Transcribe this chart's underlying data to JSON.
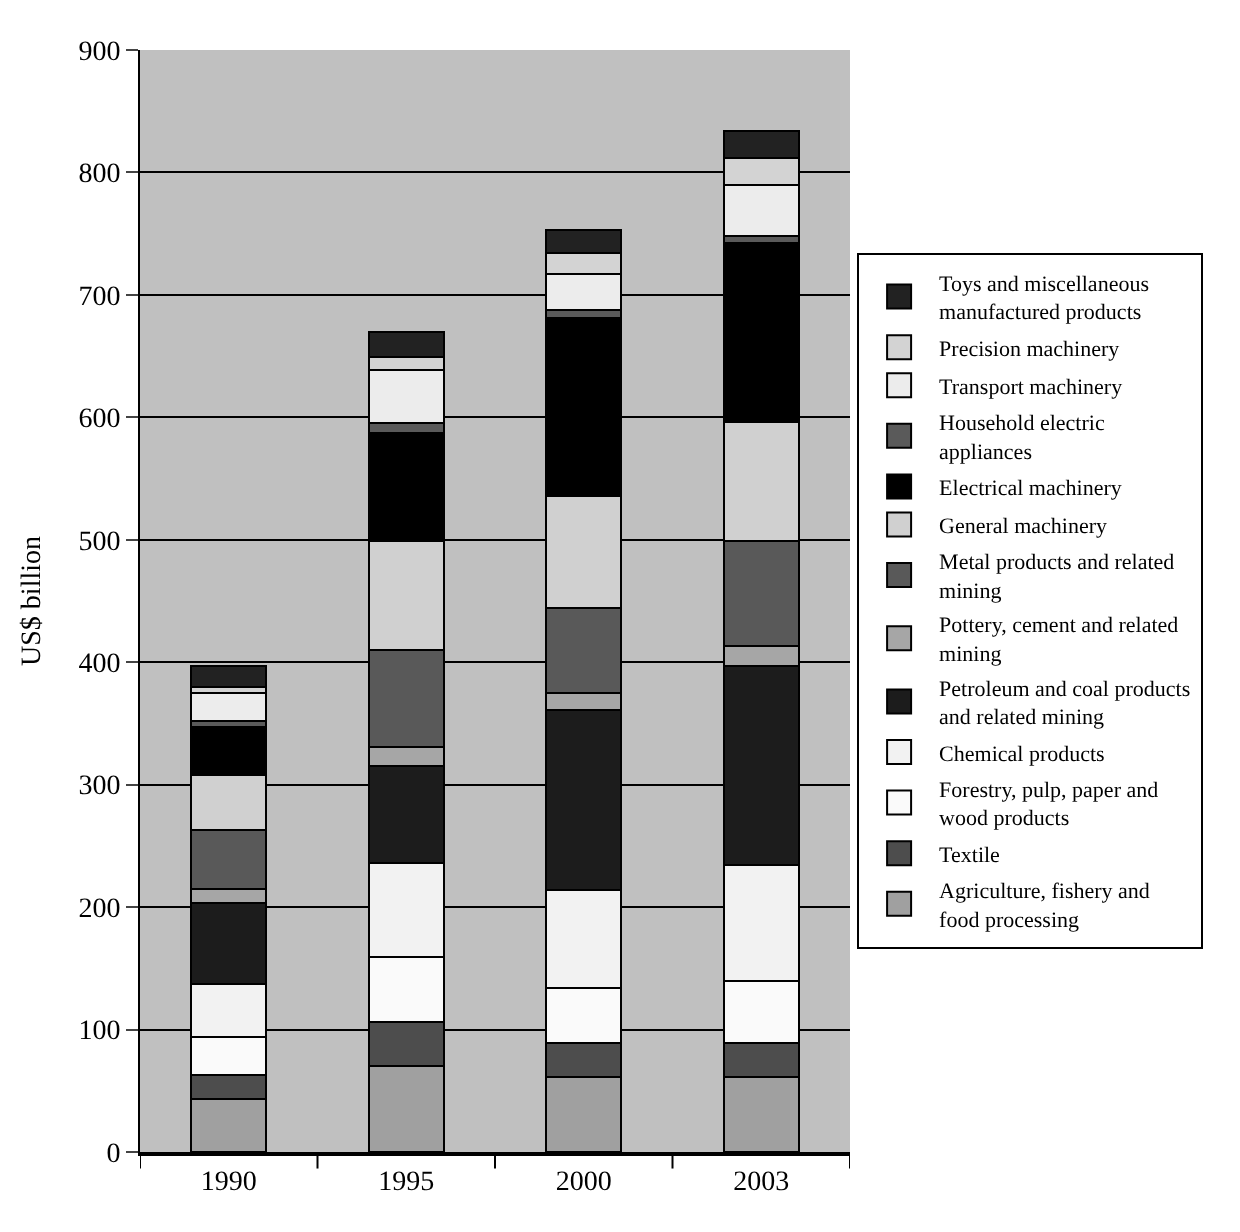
{
  "chart_data": {
    "type": "bar",
    "stacked": true,
    "ylabel": "US$ billion",
    "categories": [
      "1990",
      "1995",
      "2000",
      "2003"
    ],
    "ylim": [
      0,
      900
    ],
    "yticks": [
      0,
      100,
      200,
      300,
      400,
      500,
      600,
      700,
      800,
      900
    ],
    "grid": "y",
    "legend": "right",
    "series": [
      {
        "name": "Agriculture, fishery and food processing",
        "color": "#a0a0a0",
        "values": [
          43,
          70,
          61,
          61
        ]
      },
      {
        "name": "Textile",
        "color": "#4d4d4d",
        "values": [
          20,
          36,
          28,
          28
        ]
      },
      {
        "name": "Forestry, pulp, paper and wood products",
        "color": "#fafafa",
        "values": [
          31,
          53,
          45,
          51
        ]
      },
      {
        "name": "Chemical products",
        "color": "#f2f2f2",
        "values": [
          43,
          77,
          80,
          94
        ]
      },
      {
        "name": "Petroleum and coal products and related mining",
        "color": "#1c1c1c",
        "values": [
          66,
          79,
          147,
          163
        ]
      },
      {
        "name": "Pottery, cement and related mining",
        "color": "#a6a6a6",
        "values": [
          12,
          16,
          14,
          16
        ]
      },
      {
        "name": "Metal products and related mining",
        "color": "#595959",
        "values": [
          48,
          79,
          69,
          86
        ]
      },
      {
        "name": "General machinery",
        "color": "#d0d0d0",
        "values": [
          45,
          89,
          92,
          97
        ]
      },
      {
        "name": "Electrical machinery",
        "color": "#000000",
        "values": [
          39,
          88,
          145,
          146
        ]
      },
      {
        "name": "Household electric appliances",
        "color": "#5a5a5a",
        "values": [
          5,
          8,
          7,
          6
        ]
      },
      {
        "name": "Transport machinery",
        "color": "#ececec",
        "values": [
          23,
          44,
          29,
          42
        ]
      },
      {
        "name": "Precision machinery",
        "color": "#d3d3d3",
        "values": [
          5,
          10,
          17,
          22
        ]
      },
      {
        "name": "Toys and miscellaneous manufactured products",
        "color": "#222222",
        "values": [
          17,
          21,
          19,
          22
        ]
      }
    ]
  }
}
